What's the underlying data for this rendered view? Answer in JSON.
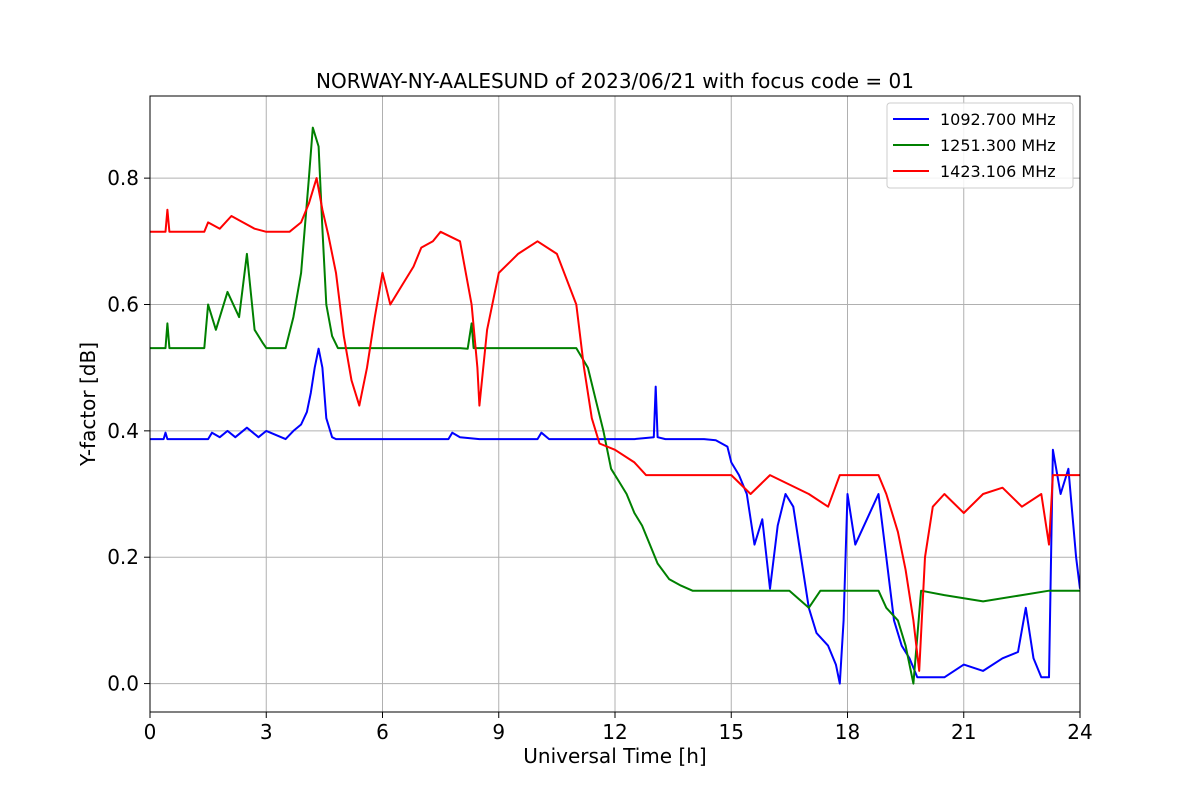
{
  "chart_data": {
    "type": "line",
    "title": "NORWAY-NY-AALESUND of 2023/06/21 with focus code = 01",
    "xlabel": "Universal Time [h]",
    "ylabel": "Y-factor [dB]",
    "xlim": [
      0,
      24
    ],
    "ylim": [
      -0.045,
      0.93
    ],
    "xticks": [
      0,
      3,
      6,
      9,
      12,
      15,
      18,
      21,
      24
    ],
    "xtick_labels": [
      "0",
      "3",
      "6",
      "9",
      "12",
      "15",
      "18",
      "21",
      "24"
    ],
    "yticks": [
      0.0,
      0.2,
      0.4,
      0.6,
      0.8
    ],
    "ytick_labels": [
      "0.0",
      "0.2",
      "0.4",
      "0.6",
      "0.8"
    ],
    "grid": true,
    "legend_position": "top-right",
    "series": [
      {
        "name": "1092.700 MHz",
        "color": "#0000ff",
        "points": [
          [
            0,
            0.387
          ],
          [
            0.35,
            0.387
          ],
          [
            0.4,
            0.397
          ],
          [
            0.45,
            0.387
          ],
          [
            1.5,
            0.387
          ],
          [
            1.6,
            0.397
          ],
          [
            1.8,
            0.39
          ],
          [
            2.0,
            0.4
          ],
          [
            2.2,
            0.39
          ],
          [
            2.5,
            0.405
          ],
          [
            2.8,
            0.39
          ],
          [
            3.0,
            0.4
          ],
          [
            3.5,
            0.387
          ],
          [
            3.7,
            0.4
          ],
          [
            3.9,
            0.41
          ],
          [
            4.05,
            0.43
          ],
          [
            4.15,
            0.46
          ],
          [
            4.25,
            0.5
          ],
          [
            4.35,
            0.53
          ],
          [
            4.45,
            0.5
          ],
          [
            4.55,
            0.42
          ],
          [
            4.7,
            0.39
          ],
          [
            4.8,
            0.387
          ],
          [
            7.7,
            0.387
          ],
          [
            7.8,
            0.397
          ],
          [
            8.0,
            0.39
          ],
          [
            8.5,
            0.387
          ],
          [
            10.0,
            0.387
          ],
          [
            10.1,
            0.397
          ],
          [
            10.3,
            0.387
          ],
          [
            12.5,
            0.387
          ],
          [
            13.0,
            0.39
          ],
          [
            13.05,
            0.47
          ],
          [
            13.1,
            0.39
          ],
          [
            13.3,
            0.387
          ],
          [
            14.3,
            0.387
          ],
          [
            14.6,
            0.385
          ],
          [
            14.9,
            0.375
          ],
          [
            15.0,
            0.35
          ],
          [
            15.2,
            0.33
          ],
          [
            15.4,
            0.3
          ],
          [
            15.6,
            0.22
          ],
          [
            15.8,
            0.26
          ],
          [
            16.0,
            0.15
          ],
          [
            16.2,
            0.25
          ],
          [
            16.4,
            0.3
          ],
          [
            16.6,
            0.28
          ],
          [
            16.8,
            0.2
          ],
          [
            17.0,
            0.12
          ],
          [
            17.2,
            0.08
          ],
          [
            17.5,
            0.06
          ],
          [
            17.7,
            0.03
          ],
          [
            17.8,
            0.0
          ],
          [
            17.9,
            0.1
          ],
          [
            18.0,
            0.3
          ],
          [
            18.2,
            0.22
          ],
          [
            18.5,
            0.26
          ],
          [
            18.8,
            0.3
          ],
          [
            19.0,
            0.2
          ],
          [
            19.2,
            0.1
          ],
          [
            19.4,
            0.06
          ],
          [
            19.6,
            0.04
          ],
          [
            19.8,
            0.01
          ],
          [
            20.0,
            0.01
          ],
          [
            20.5,
            0.01
          ],
          [
            21.0,
            0.03
          ],
          [
            21.5,
            0.02
          ],
          [
            22.0,
            0.04
          ],
          [
            22.4,
            0.05
          ],
          [
            22.6,
            0.12
          ],
          [
            22.8,
            0.04
          ],
          [
            23.0,
            0.01
          ],
          [
            23.2,
            0.01
          ],
          [
            23.3,
            0.37
          ],
          [
            23.5,
            0.3
          ],
          [
            23.7,
            0.34
          ],
          [
            23.9,
            0.2
          ],
          [
            24.0,
            0.15
          ]
        ]
      },
      {
        "name": "1251.300 MHz",
        "color": "#008000",
        "points": [
          [
            0,
            0.531
          ],
          [
            0.4,
            0.531
          ],
          [
            0.45,
            0.57
          ],
          [
            0.5,
            0.531
          ],
          [
            1.4,
            0.531
          ],
          [
            1.5,
            0.6
          ],
          [
            1.7,
            0.56
          ],
          [
            2.0,
            0.62
          ],
          [
            2.3,
            0.58
          ],
          [
            2.5,
            0.68
          ],
          [
            2.7,
            0.56
          ],
          [
            2.9,
            0.54
          ],
          [
            3.0,
            0.531
          ],
          [
            3.5,
            0.531
          ],
          [
            3.7,
            0.58
          ],
          [
            3.9,
            0.65
          ],
          [
            4.1,
            0.8
          ],
          [
            4.2,
            0.88
          ],
          [
            4.35,
            0.85
          ],
          [
            4.45,
            0.72
          ],
          [
            4.55,
            0.6
          ],
          [
            4.7,
            0.55
          ],
          [
            4.85,
            0.531
          ],
          [
            7.5,
            0.531
          ],
          [
            8.0,
            0.531
          ],
          [
            8.2,
            0.53
          ],
          [
            8.3,
            0.57
          ],
          [
            8.35,
            0.531
          ],
          [
            11.0,
            0.531
          ],
          [
            11.3,
            0.5
          ],
          [
            11.5,
            0.45
          ],
          [
            11.7,
            0.4
          ],
          [
            11.9,
            0.34
          ],
          [
            12.1,
            0.32
          ],
          [
            12.3,
            0.3
          ],
          [
            12.5,
            0.27
          ],
          [
            12.7,
            0.25
          ],
          [
            12.9,
            0.22
          ],
          [
            13.1,
            0.19
          ],
          [
            13.4,
            0.165
          ],
          [
            13.7,
            0.155
          ],
          [
            14.0,
            0.147
          ],
          [
            15.0,
            0.147
          ],
          [
            16.5,
            0.147
          ],
          [
            17.0,
            0.12
          ],
          [
            17.3,
            0.147
          ],
          [
            17.8,
            0.147
          ],
          [
            18.0,
            0.147
          ],
          [
            18.8,
            0.147
          ],
          [
            19.0,
            0.12
          ],
          [
            19.3,
            0.1
          ],
          [
            19.5,
            0.06
          ],
          [
            19.7,
            0.0
          ],
          [
            19.9,
            0.147
          ],
          [
            20.5,
            0.14
          ],
          [
            21.5,
            0.13
          ],
          [
            22.5,
            0.14
          ],
          [
            23.2,
            0.147
          ],
          [
            24.0,
            0.147
          ]
        ]
      },
      {
        "name": "1423.106 MHz",
        "color": "#ff0000",
        "points": [
          [
            0,
            0.715
          ],
          [
            0.4,
            0.715
          ],
          [
            0.45,
            0.75
          ],
          [
            0.5,
            0.715
          ],
          [
            1.4,
            0.715
          ],
          [
            1.5,
            0.73
          ],
          [
            1.8,
            0.72
          ],
          [
            2.1,
            0.74
          ],
          [
            2.4,
            0.73
          ],
          [
            2.7,
            0.72
          ],
          [
            3.0,
            0.715
          ],
          [
            3.6,
            0.715
          ],
          [
            3.9,
            0.73
          ],
          [
            4.1,
            0.76
          ],
          [
            4.3,
            0.8
          ],
          [
            4.45,
            0.75
          ],
          [
            4.6,
            0.71
          ],
          [
            4.8,
            0.65
          ],
          [
            5.0,
            0.55
          ],
          [
            5.2,
            0.48
          ],
          [
            5.4,
            0.44
          ],
          [
            5.6,
            0.5
          ],
          [
            5.8,
            0.58
          ],
          [
            6.0,
            0.65
          ],
          [
            6.2,
            0.6
          ],
          [
            6.5,
            0.63
          ],
          [
            6.8,
            0.66
          ],
          [
            7.0,
            0.69
          ],
          [
            7.3,
            0.7
          ],
          [
            7.5,
            0.715
          ],
          [
            8.0,
            0.7
          ],
          [
            8.3,
            0.6
          ],
          [
            8.45,
            0.5
          ],
          [
            8.5,
            0.44
          ],
          [
            8.7,
            0.56
          ],
          [
            9.0,
            0.65
          ],
          [
            9.5,
            0.68
          ],
          [
            10.0,
            0.7
          ],
          [
            10.5,
            0.68
          ],
          [
            11.0,
            0.6
          ],
          [
            11.2,
            0.5
          ],
          [
            11.4,
            0.42
          ],
          [
            11.6,
            0.38
          ],
          [
            12.0,
            0.37
          ],
          [
            12.5,
            0.35
          ],
          [
            12.8,
            0.33
          ],
          [
            13.0,
            0.33
          ],
          [
            15.0,
            0.33
          ],
          [
            15.5,
            0.3
          ],
          [
            16.0,
            0.33
          ],
          [
            17.0,
            0.3
          ],
          [
            17.5,
            0.28
          ],
          [
            17.8,
            0.33
          ],
          [
            18.8,
            0.33
          ],
          [
            19.0,
            0.3
          ],
          [
            19.3,
            0.24
          ],
          [
            19.5,
            0.18
          ],
          [
            19.7,
            0.1
          ],
          [
            19.85,
            0.02
          ],
          [
            20.0,
            0.2
          ],
          [
            20.2,
            0.28
          ],
          [
            20.5,
            0.3
          ],
          [
            21.0,
            0.27
          ],
          [
            21.5,
            0.3
          ],
          [
            22.0,
            0.31
          ],
          [
            22.5,
            0.28
          ],
          [
            23.0,
            0.3
          ],
          [
            23.2,
            0.22
          ],
          [
            23.3,
            0.33
          ],
          [
            24.0,
            0.33
          ]
        ]
      }
    ]
  }
}
